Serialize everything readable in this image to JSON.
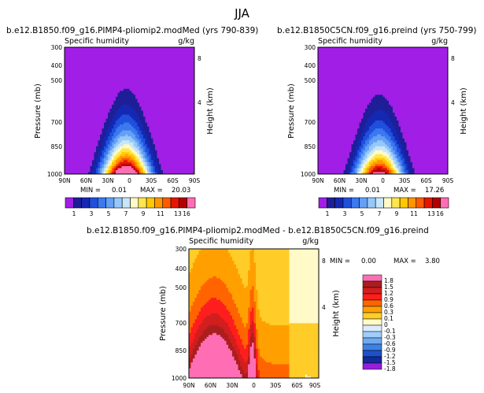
{
  "figure": {
    "title": "JJA",
    "season": "JJA"
  },
  "chart_data": [
    {
      "type": "contour",
      "title": "b.e12.B1850.f09_g16.PIMP4-pliomip2.modMed (yrs 790-839)",
      "variable": "Specific humidity",
      "units": "g/kg",
      "xlabel": "",
      "ylabel": "Pressure (mb)",
      "ylabel_right": "Height (km)",
      "x_ticks": [
        "90N",
        "60N",
        "30N",
        "0",
        "30S",
        "60S",
        "90S"
      ],
      "y_ticks": [
        "300",
        "400",
        "500",
        "700",
        "850",
        "1000"
      ],
      "right_ticks": [
        "8",
        "4"
      ],
      "stats": {
        "min_label": "MIN =",
        "min": "0.01",
        "max_label": "MAX =",
        "max": "20.03"
      },
      "levels": [
        1,
        2,
        3,
        4,
        5,
        6,
        7,
        8,
        9,
        10,
        11,
        12,
        13,
        14,
        15,
        16
      ],
      "colorbar_labels": [
        "1",
        "3",
        "5",
        "7",
        "9",
        "11",
        "13",
        "16"
      ],
      "peak_latitude": 5,
      "peak_value": 20.03
    },
    {
      "type": "contour",
      "title": "b.e12.B1850C5CN.f09_g16.preind (yrs 750-799)",
      "variable": "Specific humidity",
      "units": "g/kg",
      "xlabel": "",
      "ylabel": "Pressure (mb)",
      "ylabel_right": "Height (km)",
      "x_ticks": [
        "90N",
        "60N",
        "30N",
        "0",
        "30S",
        "60S",
        "90S"
      ],
      "y_ticks": [
        "300",
        "400",
        "500",
        "700",
        "850",
        "1000"
      ],
      "right_ticks": [
        "8",
        "4"
      ],
      "stats": {
        "min_label": "MIN =",
        "min": "0.01",
        "max_label": "MAX =",
        "max": "17.26"
      },
      "levels": [
        1,
        2,
        3,
        4,
        5,
        6,
        7,
        8,
        9,
        10,
        11,
        12,
        13,
        14,
        15,
        16
      ],
      "colorbar_labels": [
        "1",
        "3",
        "5",
        "7",
        "9",
        "11",
        "13",
        "16"
      ],
      "peak_latitude": 5,
      "peak_value": 17.26
    },
    {
      "type": "contour",
      "title": "b.e12.B1850.f09_g16.PIMP4-pliomip2.modMed - b.e12.B1850C5CN.f09_g16.preind",
      "variable": "Specific humidity",
      "units": "g/kg",
      "xlabel": "",
      "ylabel": "Pressure (mb)",
      "ylabel_right": "Height (km)",
      "x_ticks": [
        "90N",
        "60N",
        "30N",
        "0",
        "30S",
        "60S",
        "90S"
      ],
      "y_ticks": [
        "300",
        "400",
        "500",
        "700",
        "850",
        "1000"
      ],
      "right_ticks": [
        "8",
        "4"
      ],
      "stats": {
        "min_label": "MIN =",
        "min": "0.00",
        "max_label": "MAX =",
        "max": "3.80"
      },
      "levels": [
        -1.8,
        -1.5,
        -1.2,
        -0.9,
        -0.6,
        -0.3,
        -0.1,
        0,
        0.1,
        0.3,
        0.6,
        0.9,
        1.2,
        1.5,
        1.8
      ],
      "colorbar_labels": [
        "1.8",
        "1.5",
        "1.2",
        "0.9",
        "0.6",
        "0.3",
        "0.1",
        "0",
        "-0.1",
        "-0.3",
        "-0.6",
        "-0.9",
        "-1.2",
        "-1.5",
        "-1.8"
      ]
    }
  ],
  "palettes": {
    "absolute": [
      "#a11ee6",
      "#1e1e96",
      "#1428b4",
      "#1e50dc",
      "#3c78f0",
      "#64a0f5",
      "#96c8fa",
      "#c8e6fa",
      "#fffac8",
      "#ffe650",
      "#ffc800",
      "#ff9600",
      "#ff5a00",
      "#e61400",
      "#b40000",
      "#ff6eb4"
    ],
    "difference": [
      "#ff6eb4",
      "#aa1e1e",
      "#d21e1e",
      "#ff1e1e",
      "#ff6400",
      "#ffa000",
      "#ffcc28",
      "#fffac8",
      "#dcebff",
      "#a0cdfa",
      "#6eaaf0",
      "#3c82e6",
      "#1e50c8",
      "#1428a0",
      "#961edc"
    ]
  }
}
